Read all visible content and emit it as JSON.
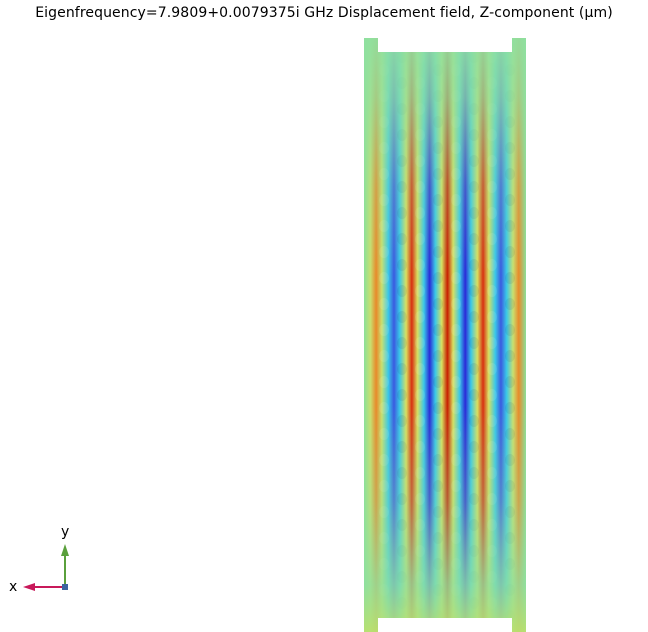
{
  "plot": {
    "title": "Eigenfrequency=7.9809+0.0079375i GHz  Displacement field, Z-component (µm)",
    "colormap": "rainbow",
    "colors": {
      "background": "#ffffff",
      "field_low": "#2a2ad8",
      "field_mid": "#7ee0a0",
      "field_high": "#c81e00"
    }
  },
  "axes": {
    "x_label": "x",
    "y_label": "y",
    "x_color": "#c8195a",
    "y_color": "#5aa03c",
    "origin_color": "#3c64a0"
  }
}
